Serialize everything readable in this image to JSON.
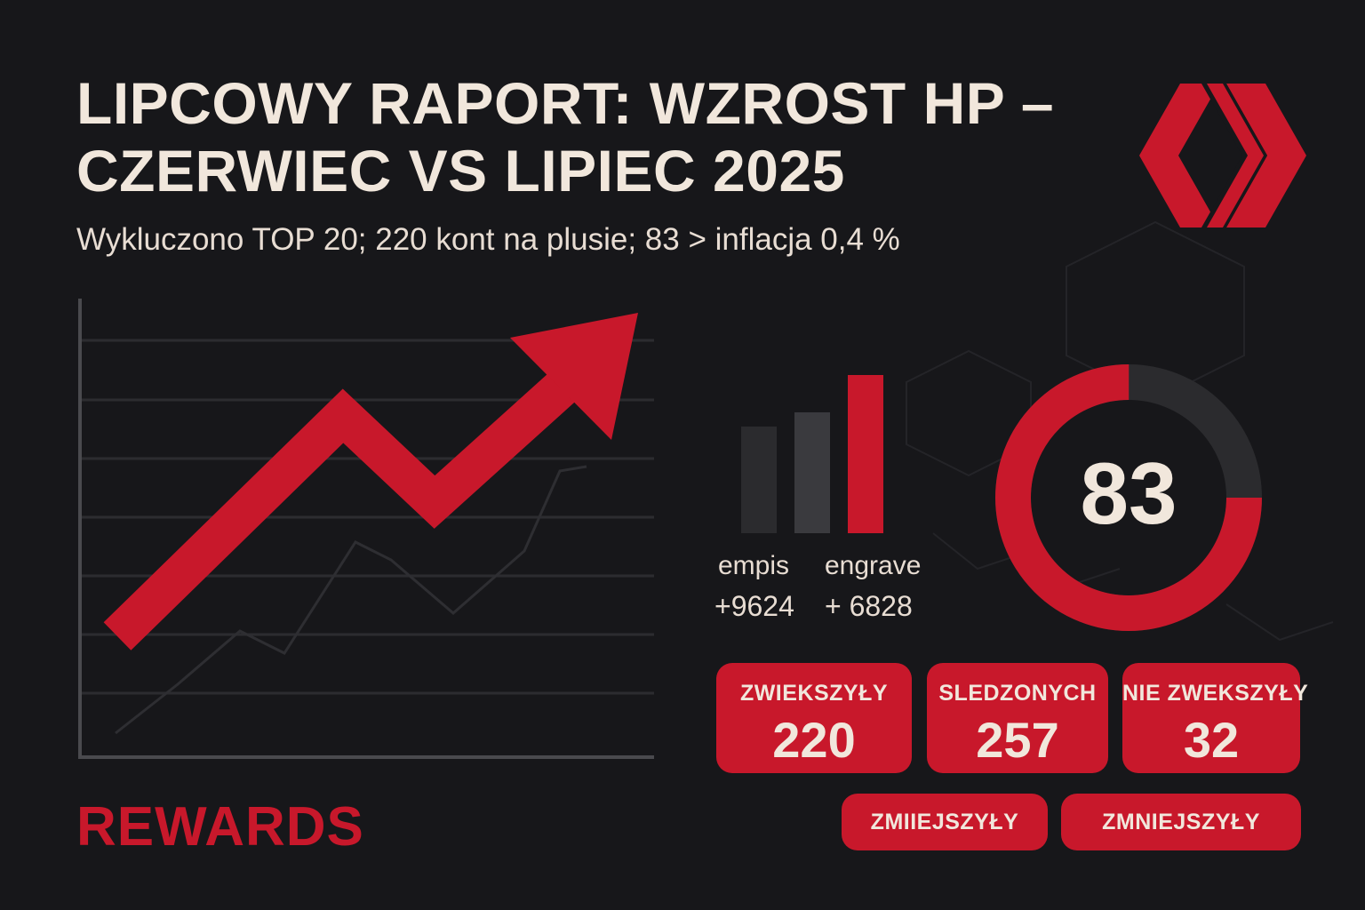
{
  "header": {
    "title_line1": "LIPCOWY RAPORT: WZROST HP –",
    "title_line2": "CZERWIEC VS LIPIEC 2025",
    "subtitle": "Wykluczono TOP 20; 220 kont na plusie; 83 >  inflacja 0,4 %"
  },
  "colors": {
    "background": "#17171a",
    "accent_red": "#c8182b",
    "text_light": "#f1e7dc",
    "dark_gray": "#2b2b2e"
  },
  "logo": {
    "icon": "hive-logo-icon"
  },
  "main_chart": {
    "icon": "upward-trend-arrow-icon"
  },
  "mini_bars": {
    "items": [
      {
        "label": "empis",
        "value": "+9624"
      },
      {
        "label": "engrave",
        "value": "+ 6828"
      }
    ]
  },
  "donut": {
    "value": "83",
    "fraction_red": 0.75
  },
  "stats": [
    {
      "label": "ZWIEKSZYŁY",
      "value": "220"
    },
    {
      "label": "SLEDZONYCH",
      "value": "257"
    },
    {
      "label": "NIE ZWEKSZYŁY",
      "value": "32"
    }
  ],
  "pills": [
    {
      "label": "ZMIIEJSZYŁY"
    },
    {
      "label": "ZMNIEJSZYŁY"
    }
  ],
  "footer": {
    "rewards": "REWARDS"
  }
}
